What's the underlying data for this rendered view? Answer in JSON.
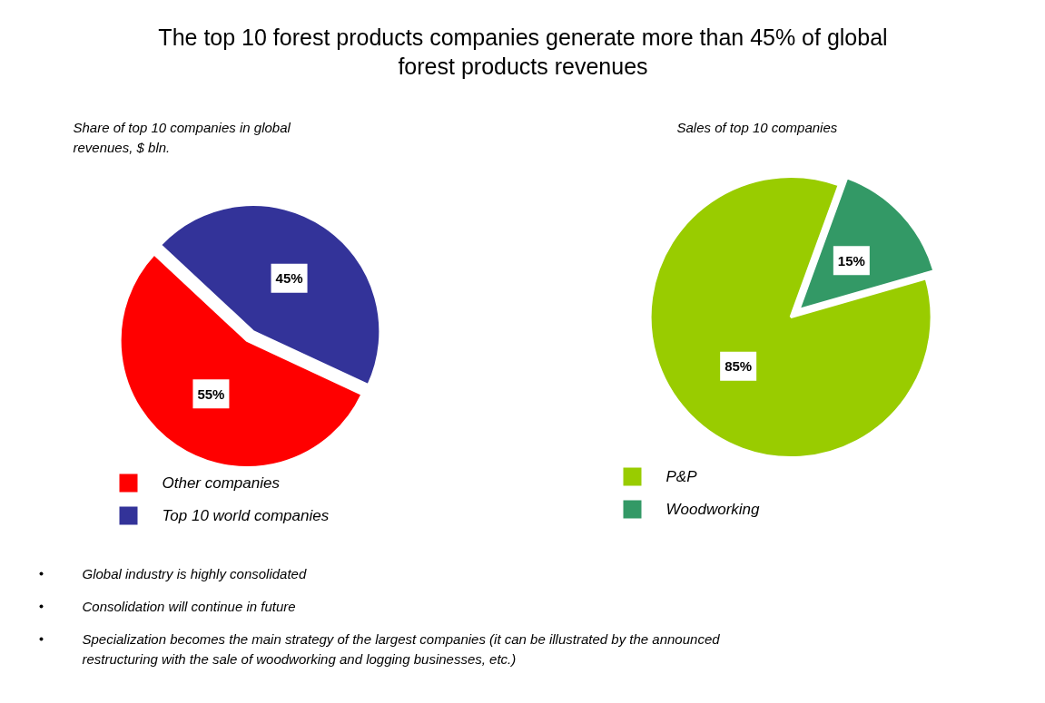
{
  "chart_data": [
    {
      "type": "other",
      "title": "The top 10 forest products companies generate more than 45% of global forest products revenues"
    },
    {
      "type": "pie",
      "subtitle": "Share of  top 10 companies in global revenues, $ bln.",
      "categories": [
        "Other companies",
        "Top 10 world companies"
      ],
      "values": [
        55,
        45
      ],
      "colors": [
        "#ff0000",
        "#333399"
      ],
      "value_labels": [
        "55%",
        "45%"
      ],
      "legend": "bottom"
    },
    {
      "type": "pie",
      "subtitle": "Sales of top 10 companies",
      "categories": [
        "P&P",
        "Woodworking"
      ],
      "values": [
        85,
        15
      ],
      "colors": [
        "#99cc00",
        "#339966"
      ],
      "value_labels": [
        "85%",
        "15%"
      ],
      "legend": "bottom"
    },
    {
      "type": "other",
      "annotations": [
        "Global industry is highly consolidated",
        "Consolidation will continue in future",
        "Specialization becomes the main strategy of the largest companies (it can be illustrated by the announced restructuring with the sale of woodworking and logging businesses, etc.)"
      ]
    }
  ]
}
